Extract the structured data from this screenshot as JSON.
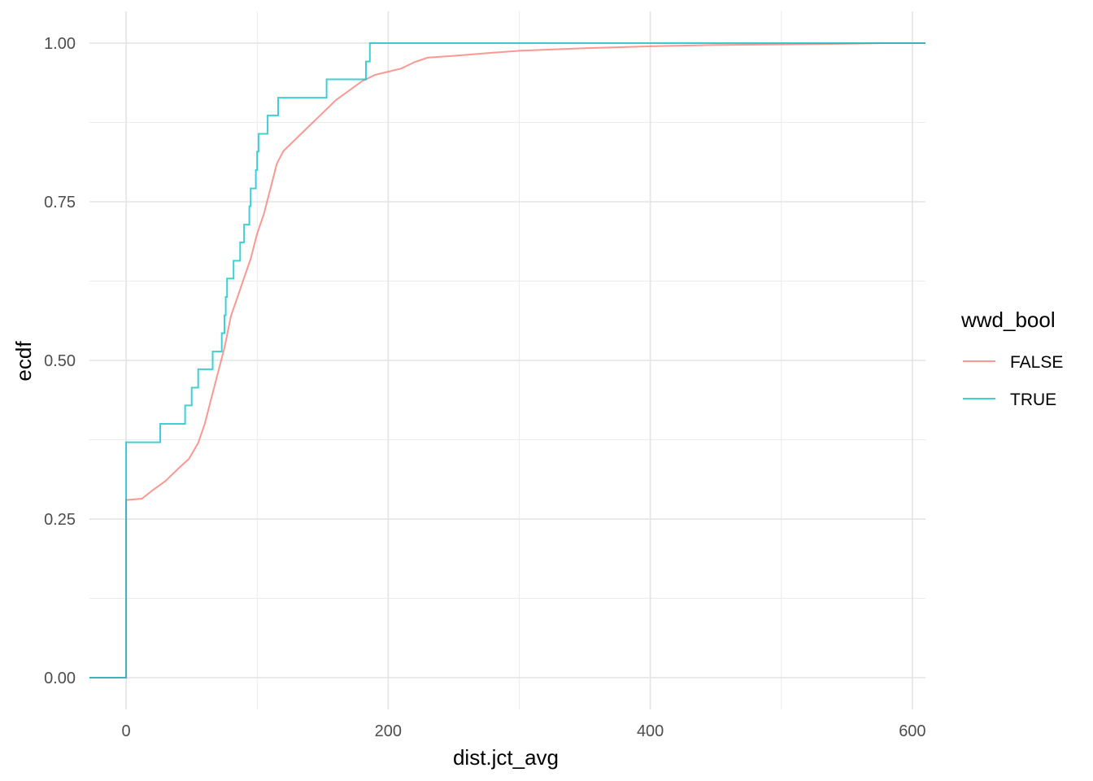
{
  "chart_data": {
    "type": "line",
    "step": true,
    "xlabel": "dist.jct_avg",
    "ylabel": "ecdf",
    "xlim": [
      -28,
      610
    ],
    "ylim": [
      -0.05,
      1.05
    ],
    "x_ticks": [
      0,
      200,
      400,
      600
    ],
    "x_tick_labels": [
      "0",
      "200",
      "400",
      "600"
    ],
    "y_ticks": [
      0,
      0.25,
      0.5,
      0.75,
      1
    ],
    "y_tick_labels": [
      "0.00",
      "0.25",
      "0.50",
      "0.75",
      "1.00"
    ],
    "grid": true,
    "legend": {
      "title": "wwd_bool",
      "position": "right"
    },
    "series": [
      {
        "name": "FALSE",
        "color": "#F8766D",
        "points": [
          [
            -28,
            0
          ],
          [
            0,
            0
          ],
          [
            0,
            0.28
          ],
          [
            12,
            0.282
          ],
          [
            20,
            0.295
          ],
          [
            30,
            0.31
          ],
          [
            40,
            0.33
          ],
          [
            48,
            0.345
          ],
          [
            55,
            0.37
          ],
          [
            60,
            0.4
          ],
          [
            65,
            0.44
          ],
          [
            70,
            0.48
          ],
          [
            75,
            0.52
          ],
          [
            80,
            0.57
          ],
          [
            85,
            0.6
          ],
          [
            90,
            0.63
          ],
          [
            95,
            0.66
          ],
          [
            100,
            0.7
          ],
          [
            105,
            0.73
          ],
          [
            110,
            0.77
          ],
          [
            115,
            0.81
          ],
          [
            120,
            0.83
          ],
          [
            130,
            0.85
          ],
          [
            140,
            0.87
          ],
          [
            150,
            0.89
          ],
          [
            160,
            0.91
          ],
          [
            170,
            0.925
          ],
          [
            180,
            0.94
          ],
          [
            190,
            0.95
          ],
          [
            200,
            0.955
          ],
          [
            210,
            0.96
          ],
          [
            220,
            0.97
          ],
          [
            230,
            0.977
          ],
          [
            250,
            0.98
          ],
          [
            280,
            0.985
          ],
          [
            300,
            0.988
          ],
          [
            350,
            0.992
          ],
          [
            400,
            0.995
          ],
          [
            450,
            0.997
          ],
          [
            500,
            0.998
          ],
          [
            550,
            0.999
          ],
          [
            580,
            1
          ],
          [
            610,
            1
          ]
        ]
      },
      {
        "name": "TRUE",
        "color": "#00BFC4",
        "points": [
          [
            -28,
            0
          ],
          [
            0,
            0
          ],
          [
            0,
            0.371
          ],
          [
            26,
            0.371
          ],
          [
            26,
            0.4
          ],
          [
            45,
            0.4
          ],
          [
            45,
            0.429
          ],
          [
            50,
            0.429
          ],
          [
            50,
            0.457
          ],
          [
            55,
            0.457
          ],
          [
            55,
            0.486
          ],
          [
            66,
            0.486
          ],
          [
            66,
            0.514
          ],
          [
            73,
            0.514
          ],
          [
            73,
            0.543
          ],
          [
            75,
            0.543
          ],
          [
            75,
            0.571
          ],
          [
            76,
            0.571
          ],
          [
            76,
            0.6
          ],
          [
            77,
            0.6
          ],
          [
            77,
            0.629
          ],
          [
            82,
            0.629
          ],
          [
            82,
            0.657
          ],
          [
            87,
            0.657
          ],
          [
            87,
            0.686
          ],
          [
            90,
            0.686
          ],
          [
            90,
            0.714
          ],
          [
            94,
            0.714
          ],
          [
            94,
            0.743
          ],
          [
            95,
            0.743
          ],
          [
            95,
            0.771
          ],
          [
            99,
            0.771
          ],
          [
            99,
            0.8
          ],
          [
            100,
            0.8
          ],
          [
            100,
            0.829
          ],
          [
            101,
            0.829
          ],
          [
            101,
            0.857
          ],
          [
            108,
            0.857
          ],
          [
            108,
            0.886
          ],
          [
            116,
            0.886
          ],
          [
            116,
            0.914
          ],
          [
            153,
            0.914
          ],
          [
            153,
            0.943
          ],
          [
            183,
            0.943
          ],
          [
            183,
            0.971
          ],
          [
            186,
            0.971
          ],
          [
            186,
            1
          ],
          [
            610,
            1
          ]
        ]
      }
    ]
  }
}
